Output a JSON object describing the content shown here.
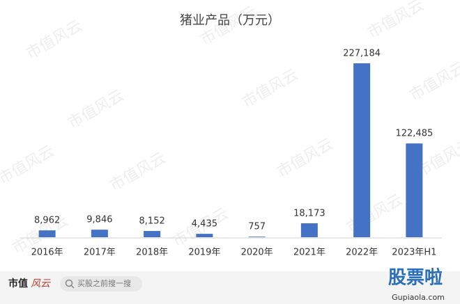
{
  "chart_data": {
    "type": "bar",
    "title": "猪业产品（万元）",
    "categories": [
      "2016年",
      "2017年",
      "2018年",
      "2019年",
      "2020年",
      "2021年",
      "2022年",
      "2023年H1"
    ],
    "values": [
      8962,
      9846,
      8152,
      4435,
      757,
      18173,
      227184,
      122485
    ],
    "value_labels": [
      "8,962",
      "9,846",
      "8,152",
      "4,435",
      "757",
      "18,173",
      "227,184",
      "122,485"
    ],
    "color": "#4472c4"
  },
  "watermark": "市值风云",
  "footer": {
    "brand": "市值",
    "brand_mark": "风云",
    "search": "买股之前搜一搜",
    "site": "股票啦",
    "site_url": "Gupiaola.com"
  }
}
